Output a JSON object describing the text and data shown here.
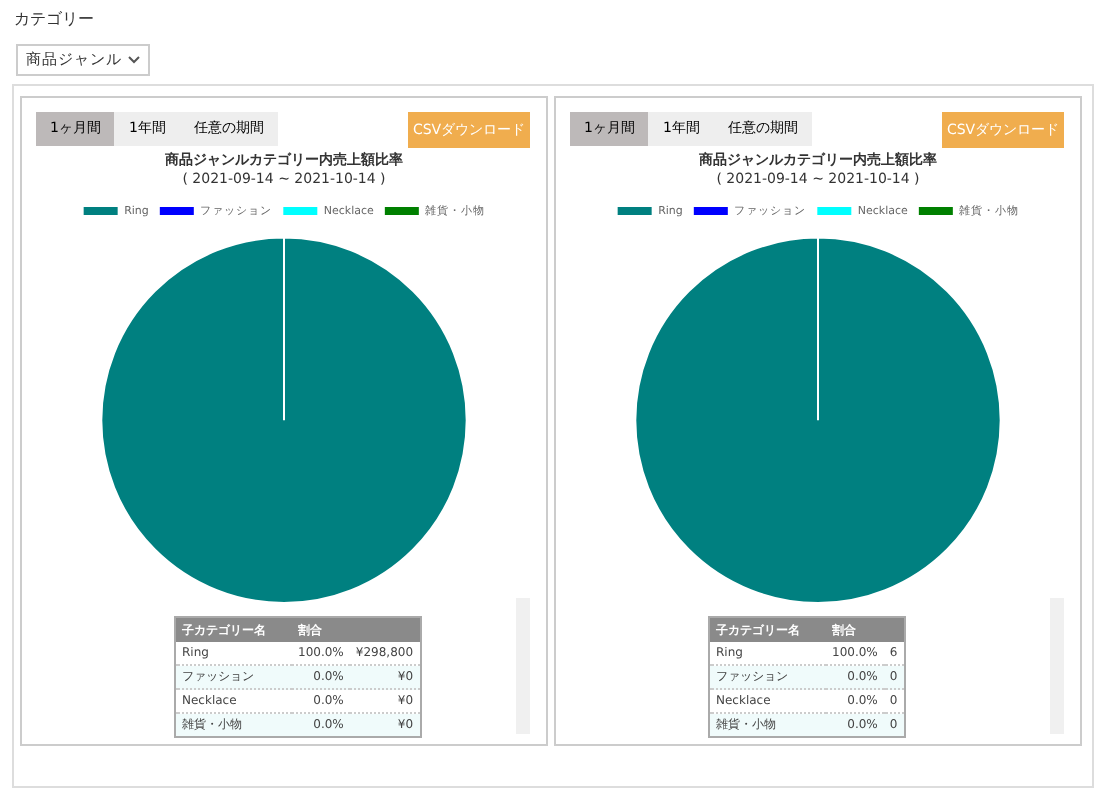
{
  "chart_data": [
    {
      "type": "pie",
      "title": "商品ジャンルカテゴリー内売上額比率",
      "subtitle": "( 2021-09-14 ~ 2021-10-14 )",
      "categories": [
        "Ring",
        "ファッション",
        "Necklace",
        "雑貨・小物"
      ],
      "values": [
        298800,
        0,
        0,
        0
      ],
      "colors": [
        "#008080",
        "#0000ff",
        "#00ffff",
        "#008000"
      ],
      "value_labels": [
        "¥298,800",
        "¥0",
        "¥0",
        "¥0"
      ],
      "legend": "top",
      "annotations": [
        "子カテゴリー名",
        "割合",
        "1ヶ月間",
        "1年間",
        "任意の期間",
        "CSVダウンロード",
        "100.0%",
        "0.0%",
        "0.0%",
        "0.0%",
        "カテゴリー",
        "商品ジャンル"
      ]
    },
    {
      "type": "pie",
      "title": "商品ジャンルカテゴリー内売上額比率",
      "subtitle": "( 2021-09-14 ~ 2021-10-14 )",
      "categories": [
        "Ring",
        "ファッション",
        "Necklace",
        "雑貨・小物"
      ],
      "values": [
        6,
        0,
        0,
        0
      ],
      "colors": [
        "#008080",
        "#0000ff",
        "#00ffff",
        "#008000"
      ],
      "value_labels": [
        "6",
        "0",
        "0",
        "0"
      ],
      "legend": "top",
      "annotations": [
        "子カテゴリー名",
        "割合",
        "1ヶ月間",
        "1年間",
        "任意の期間",
        "CSVダウンロード",
        "100.0%",
        "0.0%",
        "0.0%",
        "0.0%"
      ]
    }
  ]
}
